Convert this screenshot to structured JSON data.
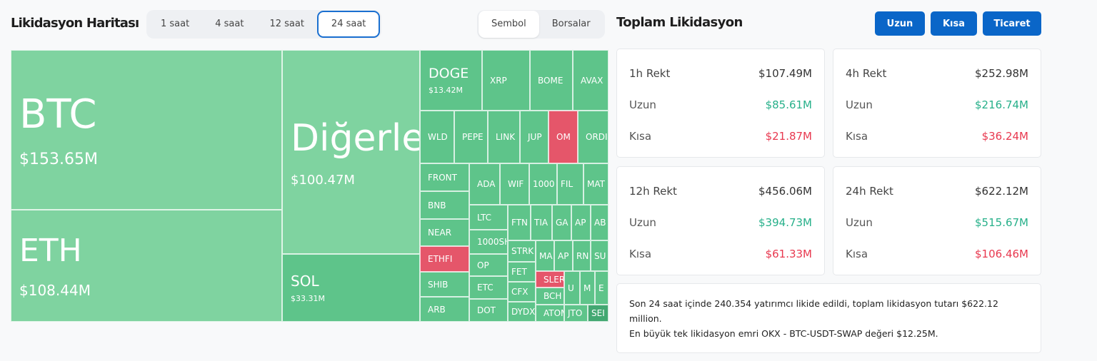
{
  "header": {
    "title": "Likidasyon Haritası",
    "time_tabs": [
      "1 saat",
      "4 saat",
      "12 saat",
      "24 saat"
    ],
    "active_time": "24 saat",
    "view_tabs": [
      "Sembol",
      "Borsalar"
    ],
    "active_view": "Sembol"
  },
  "colors": {
    "long": "#5ec48a",
    "long_light": "#7fd3a0",
    "short": "#e5566a",
    "dark": "#43a872",
    "accent": "#0a66c8"
  },
  "treemap": [
    {
      "label": "BTC",
      "value": "$153.65M",
      "tone": "long_light"
    },
    {
      "label": "ETH",
      "value": "$108.44M",
      "tone": "long_light"
    },
    {
      "label": "Diğerle",
      "value": "$100.47M",
      "tone": "long_light"
    },
    {
      "label": "SOL",
      "value": "$33.31M",
      "tone": "long"
    },
    {
      "label": "DOGE",
      "value": "$13.42M",
      "tone": "long"
    },
    {
      "label": "XRP",
      "tone": "long"
    },
    {
      "label": "BOME",
      "tone": "long"
    },
    {
      "label": "AVAX",
      "tone": "long"
    },
    {
      "label": "WLD",
      "tone": "long"
    },
    {
      "label": "PEPE",
      "tone": "long"
    },
    {
      "label": "LINK",
      "tone": "long"
    },
    {
      "label": "JUP",
      "tone": "long"
    },
    {
      "label": "OM",
      "tone": "short"
    },
    {
      "label": "ORDI",
      "tone": "long"
    },
    {
      "label": "FRONT",
      "tone": "long"
    },
    {
      "label": "BNB",
      "tone": "long"
    },
    {
      "label": "NEAR",
      "tone": "long"
    },
    {
      "label": "ETHFI",
      "tone": "short"
    },
    {
      "label": "SHIB",
      "tone": "long"
    },
    {
      "label": "ARB",
      "tone": "long"
    },
    {
      "label": "ADA",
      "tone": "long"
    },
    {
      "label": "WIF",
      "tone": "long"
    },
    {
      "label": "1000",
      "tone": "long"
    },
    {
      "label": "FIL",
      "tone": "long"
    },
    {
      "label": "MAT",
      "tone": "long"
    },
    {
      "label": "LTC",
      "tone": "long"
    },
    {
      "label": "1000SH",
      "tone": "long"
    },
    {
      "label": "OP",
      "tone": "long"
    },
    {
      "label": "ETC",
      "tone": "long"
    },
    {
      "label": "DOT",
      "tone": "long"
    },
    {
      "label": "FTN",
      "tone": "long"
    },
    {
      "label": "TIA",
      "tone": "long"
    },
    {
      "label": "GA",
      "tone": "long"
    },
    {
      "label": "AP",
      "tone": "long"
    },
    {
      "label": "AB",
      "tone": "long"
    },
    {
      "label": "STRK",
      "tone": "long"
    },
    {
      "label": "FET",
      "tone": "long"
    },
    {
      "label": "CFX",
      "tone": "long"
    },
    {
      "label": "DYDX",
      "tone": "long"
    },
    {
      "label": "MA",
      "tone": "long"
    },
    {
      "label": "AP",
      "tone": "long"
    },
    {
      "label": "RN",
      "tone": "long"
    },
    {
      "label": "SU",
      "tone": "long"
    },
    {
      "label": "SLER",
      "tone": "short"
    },
    {
      "label": "BCH",
      "tone": "long"
    },
    {
      "label": "ATOM",
      "tone": "long"
    },
    {
      "label": "U",
      "tone": "long"
    },
    {
      "label": "M",
      "tone": "long"
    },
    {
      "label": "E",
      "tone": "long"
    },
    {
      "label": "JTO",
      "tone": "long"
    },
    {
      "label": "SEI",
      "tone": "dark"
    }
  ],
  "summary": {
    "title": "Toplam Likidasyon",
    "buttons": [
      "Uzun",
      "Kısa",
      "Ticaret"
    ],
    "cards": [
      {
        "label": "1h Rekt",
        "total": "$107.49M",
        "long_label": "Uzun",
        "long": "$85.61M",
        "short_label": "Kısa",
        "short": "$21.87M"
      },
      {
        "label": "4h Rekt",
        "total": "$252.98M",
        "long_label": "Uzun",
        "long": "$216.74M",
        "short_label": "Kısa",
        "short": "$36.24M"
      },
      {
        "label": "12h Rekt",
        "total": "$456.06M",
        "long_label": "Uzun",
        "long": "$394.73M",
        "short_label": "Kısa",
        "short": "$61.33M"
      },
      {
        "label": "24h Rekt",
        "total": "$622.12M",
        "long_label": "Uzun",
        "long": "$515.67M",
        "short_label": "Kısa",
        "short": "$106.46M"
      }
    ],
    "note_line1": "Son 24 saat içinde 240.354 yatırımcı likide edildi, toplam likidasyon tutarı $622.12 million.",
    "note_line2": "En büyük tek likidasyon emri OKX - BTC-USDT-SWAP değeri $12.25M."
  }
}
